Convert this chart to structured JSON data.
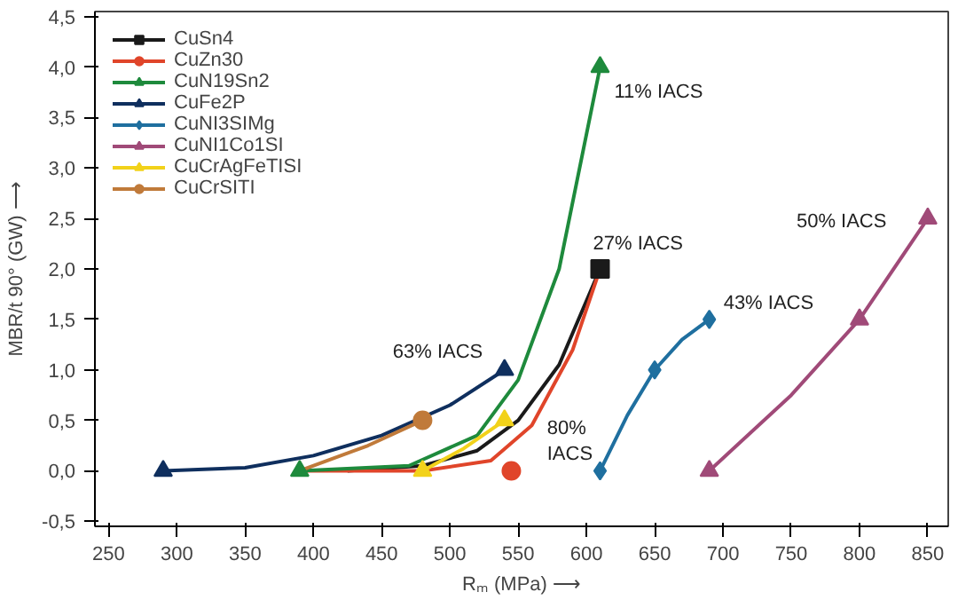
{
  "chart_data": {
    "type": "line",
    "xlabel": "Rₘ (MPa) ⟶",
    "ylabel": "MBR/t 90° (GW) ⟶",
    "xlim": [
      240,
      865
    ],
    "xticks": [
      250,
      300,
      350,
      400,
      450,
      500,
      550,
      600,
      650,
      700,
      750,
      800,
      850
    ],
    "ylim": [
      -0.55,
      4.55
    ],
    "yticks": [
      {
        "value": -0.5,
        "label": "-0,5"
      },
      {
        "value": 0,
        "label": "0,0"
      },
      {
        "value": 0.5,
        "label": "0,5"
      },
      {
        "value": 1,
        "label": "1,0"
      },
      {
        "value": 1.5,
        "label": "1,5"
      },
      {
        "value": 2,
        "label": "2,0"
      },
      {
        "value": 2.5,
        "label": "2,5"
      },
      {
        "value": 3,
        "label": "3,0"
      },
      {
        "value": 3.5,
        "label": "3,5"
      },
      {
        "value": 4,
        "label": "4,0"
      },
      {
        "value": 4.5,
        "label": "4,5"
      }
    ],
    "grid": false,
    "legend": "top left",
    "series": [
      {
        "color": "#1a1a1a",
        "x": [
          425,
          480,
          520,
          550,
          580,
          610
        ],
        "values": [
          0,
          0.05,
          0.2,
          0.5,
          1.05,
          2.0
        ]
      },
      {
        "color": "#e0452a",
        "x": [
          390,
          480,
          530,
          560,
          590,
          610
        ],
        "values": [
          0,
          0,
          0.1,
          0.45,
          1.2,
          2.0
        ]
      },
      {
        "color": "#1e8a3c",
        "x": [
          390,
          470,
          520,
          550,
          580,
          610
        ],
        "values": [
          0,
          0.05,
          0.35,
          0.9,
          2.0,
          4.0
        ]
      },
      {
        "color": "#0f2f5e",
        "x": [
          290,
          350,
          400,
          450,
          500,
          540
        ],
        "values": [
          0,
          0.03,
          0.15,
          0.35,
          0.65,
          1.0
        ]
      },
      {
        "color": "#1f6f9f",
        "x": [
          610,
          630,
          650,
          670,
          690
        ],
        "values": [
          0,
          0.55,
          1.0,
          1.3,
          1.5
        ]
      },
      {
        "color": "#a04a78",
        "x": [
          690,
          750,
          800,
          850
        ],
        "values": [
          0,
          0.75,
          1.5,
          2.5
        ]
      },
      {
        "color": "#f2d21a",
        "x": [
          480,
          510,
          540
        ],
        "values": [
          0,
          0.22,
          0.5
        ]
      },
      {
        "color": "#c07a3a",
        "x": [
          390,
          440,
          480
        ],
        "values": [
          0,
          0.25,
          0.5
        ]
      },
      {
        "type": "scatter",
        "name": "CuSn4",
        "color": "#1a1a1a",
        "marker": "square",
        "x": [
          610
        ],
        "values": [
          2.0
        ]
      },
      {
        "type": "scatter",
        "name": "CuZn30",
        "color": "#e0452a",
        "marker": "circle",
        "x": [
          545
        ],
        "values": [
          0
        ]
      },
      {
        "type": "scatter",
        "name": "CuN19Sn2",
        "color": "#1e8a3c",
        "marker": "triangle",
        "x": [
          390,
          610
        ],
        "values": [
          0,
          4.0
        ]
      },
      {
        "type": "scatter",
        "name": "CuFe2P",
        "color": "#0f2f5e",
        "marker": "triangle",
        "x": [
          290,
          540
        ],
        "values": [
          0,
          1.0
        ]
      },
      {
        "type": "scatter",
        "name": "CuNI3SIMg",
        "color": "#1f6f9f",
        "marker": "diamond",
        "x": [
          610,
          650,
          690
        ],
        "values": [
          0,
          1.0,
          1.5
        ]
      },
      {
        "type": "scatter",
        "name": "CuNI1Co1SI",
        "color": "#a04a78",
        "marker": "triangle",
        "x": [
          690,
          800,
          850
        ],
        "values": [
          0,
          1.5,
          2.5
        ]
      },
      {
        "type": "scatter",
        "name": "CuCrAgFeTISI",
        "color": "#f2d21a",
        "marker": "triangle",
        "x": [
          480,
          540
        ],
        "values": [
          0,
          0.5
        ]
      },
      {
        "type": "scatter",
        "name": "CuCrSITI",
        "color": "#c07a3a",
        "marker": "circle",
        "x": [
          480
        ],
        "values": [
          0.5
        ]
      }
    ],
    "annotations": [
      {
        "text": "11% IACS",
        "x": 610,
        "y": 4.0
      },
      {
        "text": "27% IACS",
        "x": 610,
        "y": 2.0
      },
      {
        "text": "63% IACS",
        "x": 540,
        "y": 1.0
      },
      {
        "text": "80%\nIACS",
        "x": 540,
        "y": 0.5
      },
      {
        "text": "43% IACS",
        "x": 690,
        "y": 1.5
      },
      {
        "text": "50% IACS",
        "x": 850,
        "y": 2.5
      }
    ]
  }
}
